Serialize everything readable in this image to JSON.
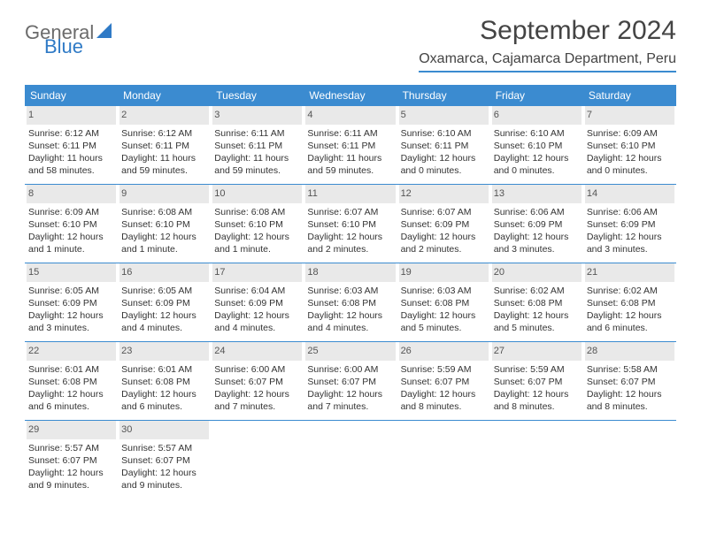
{
  "logo": {
    "general": "General",
    "blue": "Blue"
  },
  "title": "September 2024",
  "location": "Oxamarca, Cajamarca Department, Peru",
  "colors": {
    "header_bg": "#3b8bd0",
    "header_text": "#ffffff",
    "daynum_bg": "#e9e9e9",
    "border": "#3b8bd0",
    "text": "#333333",
    "logo_gray": "#6b6b6b",
    "logo_blue": "#2f7ac6",
    "background": "#ffffff"
  },
  "day_headers": [
    "Sunday",
    "Monday",
    "Tuesday",
    "Wednesday",
    "Thursday",
    "Friday",
    "Saturday"
  ],
  "weeks": [
    [
      {
        "n": "1",
        "sr": "Sunrise: 6:12 AM",
        "ss": "Sunset: 6:11 PM",
        "dl1": "Daylight: 11 hours",
        "dl2": "and 58 minutes."
      },
      {
        "n": "2",
        "sr": "Sunrise: 6:12 AM",
        "ss": "Sunset: 6:11 PM",
        "dl1": "Daylight: 11 hours",
        "dl2": "and 59 minutes."
      },
      {
        "n": "3",
        "sr": "Sunrise: 6:11 AM",
        "ss": "Sunset: 6:11 PM",
        "dl1": "Daylight: 11 hours",
        "dl2": "and 59 minutes."
      },
      {
        "n": "4",
        "sr": "Sunrise: 6:11 AM",
        "ss": "Sunset: 6:11 PM",
        "dl1": "Daylight: 11 hours",
        "dl2": "and 59 minutes."
      },
      {
        "n": "5",
        "sr": "Sunrise: 6:10 AM",
        "ss": "Sunset: 6:11 PM",
        "dl1": "Daylight: 12 hours",
        "dl2": "and 0 minutes."
      },
      {
        "n": "6",
        "sr": "Sunrise: 6:10 AM",
        "ss": "Sunset: 6:10 PM",
        "dl1": "Daylight: 12 hours",
        "dl2": "and 0 minutes."
      },
      {
        "n": "7",
        "sr": "Sunrise: 6:09 AM",
        "ss": "Sunset: 6:10 PM",
        "dl1": "Daylight: 12 hours",
        "dl2": "and 0 minutes."
      }
    ],
    [
      {
        "n": "8",
        "sr": "Sunrise: 6:09 AM",
        "ss": "Sunset: 6:10 PM",
        "dl1": "Daylight: 12 hours",
        "dl2": "and 1 minute."
      },
      {
        "n": "9",
        "sr": "Sunrise: 6:08 AM",
        "ss": "Sunset: 6:10 PM",
        "dl1": "Daylight: 12 hours",
        "dl2": "and 1 minute."
      },
      {
        "n": "10",
        "sr": "Sunrise: 6:08 AM",
        "ss": "Sunset: 6:10 PM",
        "dl1": "Daylight: 12 hours",
        "dl2": "and 1 minute."
      },
      {
        "n": "11",
        "sr": "Sunrise: 6:07 AM",
        "ss": "Sunset: 6:10 PM",
        "dl1": "Daylight: 12 hours",
        "dl2": "and 2 minutes."
      },
      {
        "n": "12",
        "sr": "Sunrise: 6:07 AM",
        "ss": "Sunset: 6:09 PM",
        "dl1": "Daylight: 12 hours",
        "dl2": "and 2 minutes."
      },
      {
        "n": "13",
        "sr": "Sunrise: 6:06 AM",
        "ss": "Sunset: 6:09 PM",
        "dl1": "Daylight: 12 hours",
        "dl2": "and 3 minutes."
      },
      {
        "n": "14",
        "sr": "Sunrise: 6:06 AM",
        "ss": "Sunset: 6:09 PM",
        "dl1": "Daylight: 12 hours",
        "dl2": "and 3 minutes."
      }
    ],
    [
      {
        "n": "15",
        "sr": "Sunrise: 6:05 AM",
        "ss": "Sunset: 6:09 PM",
        "dl1": "Daylight: 12 hours",
        "dl2": "and 3 minutes."
      },
      {
        "n": "16",
        "sr": "Sunrise: 6:05 AM",
        "ss": "Sunset: 6:09 PM",
        "dl1": "Daylight: 12 hours",
        "dl2": "and 4 minutes."
      },
      {
        "n": "17",
        "sr": "Sunrise: 6:04 AM",
        "ss": "Sunset: 6:09 PM",
        "dl1": "Daylight: 12 hours",
        "dl2": "and 4 minutes."
      },
      {
        "n": "18",
        "sr": "Sunrise: 6:03 AM",
        "ss": "Sunset: 6:08 PM",
        "dl1": "Daylight: 12 hours",
        "dl2": "and 4 minutes."
      },
      {
        "n": "19",
        "sr": "Sunrise: 6:03 AM",
        "ss": "Sunset: 6:08 PM",
        "dl1": "Daylight: 12 hours",
        "dl2": "and 5 minutes."
      },
      {
        "n": "20",
        "sr": "Sunrise: 6:02 AM",
        "ss": "Sunset: 6:08 PM",
        "dl1": "Daylight: 12 hours",
        "dl2": "and 5 minutes."
      },
      {
        "n": "21",
        "sr": "Sunrise: 6:02 AM",
        "ss": "Sunset: 6:08 PM",
        "dl1": "Daylight: 12 hours",
        "dl2": "and 6 minutes."
      }
    ],
    [
      {
        "n": "22",
        "sr": "Sunrise: 6:01 AM",
        "ss": "Sunset: 6:08 PM",
        "dl1": "Daylight: 12 hours",
        "dl2": "and 6 minutes."
      },
      {
        "n": "23",
        "sr": "Sunrise: 6:01 AM",
        "ss": "Sunset: 6:08 PM",
        "dl1": "Daylight: 12 hours",
        "dl2": "and 6 minutes."
      },
      {
        "n": "24",
        "sr": "Sunrise: 6:00 AM",
        "ss": "Sunset: 6:07 PM",
        "dl1": "Daylight: 12 hours",
        "dl2": "and 7 minutes."
      },
      {
        "n": "25",
        "sr": "Sunrise: 6:00 AM",
        "ss": "Sunset: 6:07 PM",
        "dl1": "Daylight: 12 hours",
        "dl2": "and 7 minutes."
      },
      {
        "n": "26",
        "sr": "Sunrise: 5:59 AM",
        "ss": "Sunset: 6:07 PM",
        "dl1": "Daylight: 12 hours",
        "dl2": "and 8 minutes."
      },
      {
        "n": "27",
        "sr": "Sunrise: 5:59 AM",
        "ss": "Sunset: 6:07 PM",
        "dl1": "Daylight: 12 hours",
        "dl2": "and 8 minutes."
      },
      {
        "n": "28",
        "sr": "Sunrise: 5:58 AM",
        "ss": "Sunset: 6:07 PM",
        "dl1": "Daylight: 12 hours",
        "dl2": "and 8 minutes."
      }
    ],
    [
      {
        "n": "29",
        "sr": "Sunrise: 5:57 AM",
        "ss": "Sunset: 6:07 PM",
        "dl1": "Daylight: 12 hours",
        "dl2": "and 9 minutes."
      },
      {
        "n": "30",
        "sr": "Sunrise: 5:57 AM",
        "ss": "Sunset: 6:07 PM",
        "dl1": "Daylight: 12 hours",
        "dl2": "and 9 minutes."
      },
      {
        "empty": true
      },
      {
        "empty": true
      },
      {
        "empty": true
      },
      {
        "empty": true
      },
      {
        "empty": true
      }
    ]
  ]
}
